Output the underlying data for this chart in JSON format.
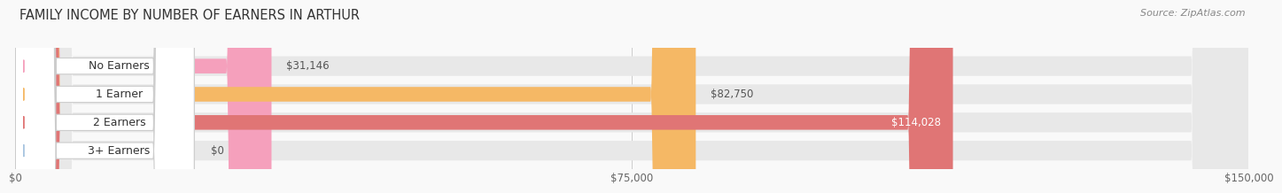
{
  "title": "FAMILY INCOME BY NUMBER OF EARNERS IN ARTHUR",
  "source": "Source: ZipAtlas.com",
  "categories": [
    "No Earners",
    "1 Earner",
    "2 Earners",
    "3+ Earners"
  ],
  "values": [
    31146,
    82750,
    114028,
    0
  ],
  "value_labels": [
    "$31,146",
    "$82,750",
    "$114,028",
    "$0"
  ],
  "bar_colors": [
    "#f5a0bc",
    "#f5b865",
    "#e07575",
    "#a8c4e0"
  ],
  "track_color": "#e8e8e8",
  "xlim": [
    0,
    150000
  ],
  "xtick_labels": [
    "$0",
    "$75,000",
    "$150,000"
  ],
  "background_color": "#f9f9f9",
  "title_fontsize": 10.5,
  "label_fontsize": 9,
  "value_fontsize": 8.5,
  "source_fontsize": 8
}
